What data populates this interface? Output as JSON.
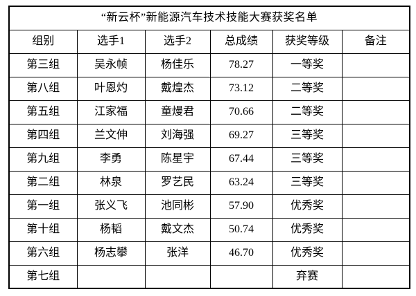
{
  "table": {
    "title": "“新云杯”新能源汽车技术技能大赛获奖名单",
    "headers": [
      "组别",
      "选手1",
      "选手2",
      "总成绩",
      "获奖等级",
      "备注"
    ],
    "rows": [
      [
        "第三组",
        "吴永帧",
        "杨佳乐",
        "78.27",
        "一等奖",
        ""
      ],
      [
        "第八组",
        "叶恩灼",
        "戴煌杰",
        "73.12",
        "二等奖",
        ""
      ],
      [
        "第五组",
        "江家福",
        "童熳君",
        "70.66",
        "二等奖",
        ""
      ],
      [
        "第四组",
        "兰文伸",
        "刘海强",
        "69.27",
        "三等奖",
        ""
      ],
      [
        "第九组",
        "李勇",
        "陈星宇",
        "67.44",
        "三等奖",
        ""
      ],
      [
        "第二组",
        "林泉",
        "罗艺民",
        "63.24",
        "三等奖",
        ""
      ],
      [
        "第一组",
        "张义飞",
        "池同彬",
        "57.90",
        "优秀奖",
        ""
      ],
      [
        "第十组",
        "杨韬",
        "戴文杰",
        "50.74",
        "优秀奖",
        ""
      ],
      [
        "第六组",
        "杨志攀",
        "张洋",
        "46.70",
        "优秀奖",
        ""
      ],
      [
        "第七组",
        "",
        "",
        "",
        "弃赛",
        ""
      ]
    ],
    "colors": {
      "border": "#000000",
      "text": "#000000",
      "background": "#ffffff"
    }
  }
}
